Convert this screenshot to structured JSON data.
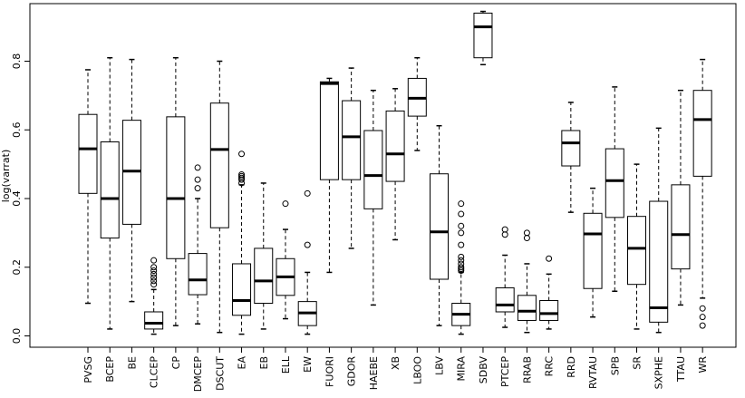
{
  "chart_data": {
    "type": "boxplot",
    "ylabel": "log(varrat)",
    "ylim": [
      -0.02,
      0.96
    ],
    "yticks": [
      0.0,
      0.2,
      0.4,
      0.6,
      0.8
    ],
    "ytick_labels": [
      "0.0",
      "0.2",
      "0.4",
      "0.6",
      "0.8"
    ],
    "grid": false,
    "categories": [
      "PVSG",
      "BCEP",
      "BE",
      "CLCEP",
      "CP",
      "DMCEP",
      "DSCUT",
      "EA",
      "EB",
      "ELL",
      "EW",
      "FUORI",
      "GDOR",
      "HAEBE",
      "XB",
      "LBOO",
      "LBV",
      "MIRA",
      "SDBV",
      "PTCEP",
      "RRAB",
      "RRC",
      "RRD",
      "RVTAU",
      "SPB",
      "SR",
      "SXPHE",
      "TTAU",
      "WR"
    ],
    "boxes": [
      {
        "min": 0.095,
        "q1": 0.415,
        "median": 0.545,
        "q3": 0.645,
        "max": 0.775,
        "outliers": []
      },
      {
        "min": 0.02,
        "q1": 0.285,
        "median": 0.4,
        "q3": 0.565,
        "max": 0.81,
        "outliers": []
      },
      {
        "min": 0.1,
        "q1": 0.325,
        "median": 0.48,
        "q3": 0.628,
        "max": 0.805,
        "outliers": []
      },
      {
        "min": 0.005,
        "q1": 0.02,
        "median": 0.037,
        "q3": 0.07,
        "max": 0.135,
        "outliers": [
          0.15,
          0.16,
          0.17,
          0.18,
          0.19,
          0.2,
          0.22
        ]
      },
      {
        "min": 0.03,
        "q1": 0.225,
        "median": 0.4,
        "q3": 0.638,
        "max": 0.81,
        "outliers": []
      },
      {
        "min": 0.035,
        "q1": 0.12,
        "median": 0.163,
        "q3": 0.24,
        "max": 0.4,
        "outliers": [
          0.43,
          0.455,
          0.49
        ]
      },
      {
        "min": 0.01,
        "q1": 0.315,
        "median": 0.543,
        "q3": 0.678,
        "max": 0.8,
        "outliers": []
      },
      {
        "min": 0.005,
        "q1": 0.06,
        "median": 0.103,
        "q3": 0.21,
        "max": 0.44,
        "outliers": [
          0.445,
          0.455,
          0.46,
          0.465,
          0.47,
          0.53
        ]
      },
      {
        "min": 0.02,
        "q1": 0.095,
        "median": 0.16,
        "q3": 0.255,
        "max": 0.445,
        "outliers": []
      },
      {
        "min": 0.05,
        "q1": 0.118,
        "median": 0.172,
        "q3": 0.225,
        "max": 0.31,
        "outliers": [
          0.385
        ]
      },
      {
        "min": 0.005,
        "q1": 0.03,
        "median": 0.067,
        "q3": 0.1,
        "max": 0.185,
        "outliers": [
          0.265,
          0.415
        ]
      },
      {
        "min": 0.185,
        "q1": 0.455,
        "median": 0.735,
        "q3": 0.74,
        "max": 0.75,
        "outliers": []
      },
      {
        "min": 0.255,
        "q1": 0.455,
        "median": 0.58,
        "q3": 0.685,
        "max": 0.78,
        "outliers": []
      },
      {
        "min": 0.09,
        "q1": 0.37,
        "median": 0.467,
        "q3": 0.598,
        "max": 0.715,
        "outliers": []
      },
      {
        "min": 0.28,
        "q1": 0.45,
        "median": 0.53,
        "q3": 0.655,
        "max": 0.72,
        "outliers": []
      },
      {
        "min": 0.54,
        "q1": 0.64,
        "median": 0.692,
        "q3": 0.75,
        "max": 0.81,
        "outliers": []
      },
      {
        "min": 0.03,
        "q1": 0.165,
        "median": 0.303,
        "q3": 0.472,
        "max": 0.612,
        "outliers": []
      },
      {
        "min": 0.005,
        "q1": 0.03,
        "median": 0.063,
        "q3": 0.095,
        "max": 0.185,
        "outliers": [
          0.19,
          0.195,
          0.2,
          0.21,
          0.22,
          0.23,
          0.265,
          0.3,
          0.32,
          0.355,
          0.385
        ]
      },
      {
        "min": 0.79,
        "q1": 0.81,
        "median": 0.9,
        "q3": 0.94,
        "max": 0.945,
        "outliers": []
      },
      {
        "min": 0.025,
        "q1": 0.07,
        "median": 0.09,
        "q3": 0.14,
        "max": 0.235,
        "outliers": [
          0.295,
          0.31
        ]
      },
      {
        "min": 0.01,
        "q1": 0.045,
        "median": 0.072,
        "q3": 0.118,
        "max": 0.21,
        "outliers": [
          0.285,
          0.3
        ]
      },
      {
        "min": 0.02,
        "q1": 0.045,
        "median": 0.065,
        "q3": 0.103,
        "max": 0.18,
        "outliers": [
          0.225
        ]
      },
      {
        "min": 0.36,
        "q1": 0.495,
        "median": 0.562,
        "q3": 0.598,
        "max": 0.68,
        "outliers": []
      },
      {
        "min": 0.055,
        "q1": 0.138,
        "median": 0.297,
        "q3": 0.357,
        "max": 0.43,
        "outliers": []
      },
      {
        "min": 0.13,
        "q1": 0.345,
        "median": 0.452,
        "q3": 0.545,
        "max": 0.725,
        "outliers": []
      },
      {
        "min": 0.02,
        "q1": 0.15,
        "median": 0.255,
        "q3": 0.348,
        "max": 0.5,
        "outliers": []
      },
      {
        "min": 0.01,
        "q1": 0.04,
        "median": 0.082,
        "q3": 0.392,
        "max": 0.605,
        "outliers": []
      },
      {
        "min": 0.09,
        "q1": 0.195,
        "median": 0.295,
        "q3": 0.44,
        "max": 0.715,
        "outliers": []
      },
      {
        "min": 0.11,
        "q1": 0.465,
        "median": 0.63,
        "q3": 0.715,
        "max": 0.805,
        "outliers": [
          0.03,
          0.055,
          0.08
        ]
      }
    ]
  }
}
